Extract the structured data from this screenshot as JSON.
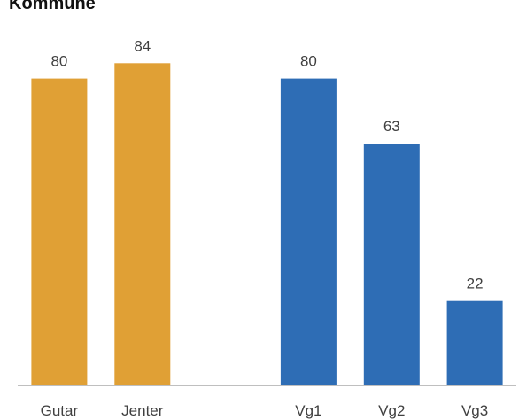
{
  "chart_data": {
    "type": "bar",
    "title": "Kommune",
    "categories": [
      "Gutar",
      "Jenter",
      "",
      "Vg1",
      "Vg2",
      "Vg3"
    ],
    "values": [
      80,
      84,
      null,
      80,
      63,
      22
    ],
    "bar_colors": [
      "#E0A035",
      "#E0A035",
      null,
      "#2E6DB5",
      "#2E6DB5",
      "#2E6DB5"
    ],
    "ylim": [
      0,
      100
    ],
    "grid": false,
    "legend": "none",
    "axis_color": "#BFBFBF",
    "label_color": "#404040"
  }
}
